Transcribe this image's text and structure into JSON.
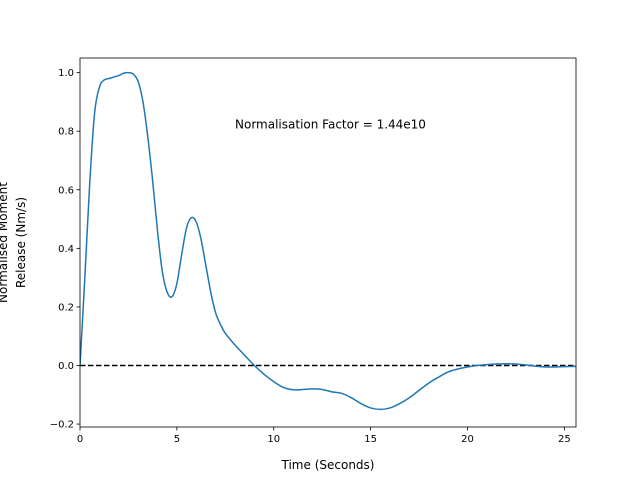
{
  "chart_data": {
    "type": "line",
    "title": "",
    "xlabel": "Time (Seconds)",
    "ylabel_lines": [
      "Normalised Moment",
      "Release (Nm/s)"
    ],
    "xlim": [
      0,
      25.6
    ],
    "ylim": [
      -0.21,
      1.05
    ],
    "xticks": [
      0,
      5,
      10,
      15,
      20,
      25
    ],
    "yticks": [
      -0.2,
      0.0,
      0.2,
      0.4,
      0.6,
      0.8,
      1.0
    ],
    "xtick_labels": [
      "0",
      "5",
      "10",
      "15",
      "20",
      "25"
    ],
    "ytick_labels": [
      "−0.2",
      "0.0",
      "0.2",
      "0.4",
      "0.6",
      "0.8",
      "1.0"
    ],
    "grid": false,
    "annotation": {
      "text": "Normalisation Factor = 1.44e10",
      "x": 8.0,
      "y": 0.81
    },
    "reference_line": {
      "y": 0.0,
      "style": "dashed",
      "color": "#000000"
    },
    "series": [
      {
        "color": "#1f77b4",
        "x": [
          0,
          0.25,
          0.5,
          0.75,
          1.0,
          1.25,
          1.5,
          1.75,
          2.0,
          2.25,
          2.5,
          2.75,
          3.0,
          3.25,
          3.5,
          3.75,
          4.0,
          4.25,
          4.5,
          4.75,
          5.0,
          5.25,
          5.5,
          5.75,
          6.0,
          6.25,
          6.5,
          6.75,
          7.0,
          7.25,
          7.5,
          8.0,
          8.5,
          9.0,
          9.5,
          10.0,
          10.5,
          11.0,
          11.5,
          12.0,
          12.5,
          13.0,
          13.5,
          14.0,
          14.5,
          15.0,
          15.5,
          16.0,
          16.5,
          17.0,
          17.5,
          18.0,
          18.5,
          19.0,
          19.5,
          20.0,
          20.5,
          21.0,
          21.5,
          22.0,
          22.5,
          23.0,
          23.5,
          24.0,
          24.5,
          25.0,
          25.6
        ],
        "y": [
          0.0,
          0.3,
          0.62,
          0.86,
          0.95,
          0.975,
          0.98,
          0.985,
          0.99,
          0.998,
          1.0,
          0.995,
          0.97,
          0.9,
          0.78,
          0.63,
          0.46,
          0.32,
          0.25,
          0.235,
          0.28,
          0.38,
          0.47,
          0.505,
          0.49,
          0.43,
          0.34,
          0.25,
          0.18,
          0.14,
          0.11,
          0.07,
          0.035,
          0.0,
          -0.03,
          -0.055,
          -0.075,
          -0.083,
          -0.082,
          -0.08,
          -0.082,
          -0.09,
          -0.095,
          -0.11,
          -0.13,
          -0.145,
          -0.15,
          -0.145,
          -0.13,
          -0.11,
          -0.085,
          -0.06,
          -0.04,
          -0.022,
          -0.012,
          -0.005,
          0.0,
          0.003,
          0.005,
          0.006,
          0.005,
          0.002,
          -0.002,
          -0.005,
          -0.005,
          -0.004,
          -0.003
        ]
      }
    ]
  }
}
